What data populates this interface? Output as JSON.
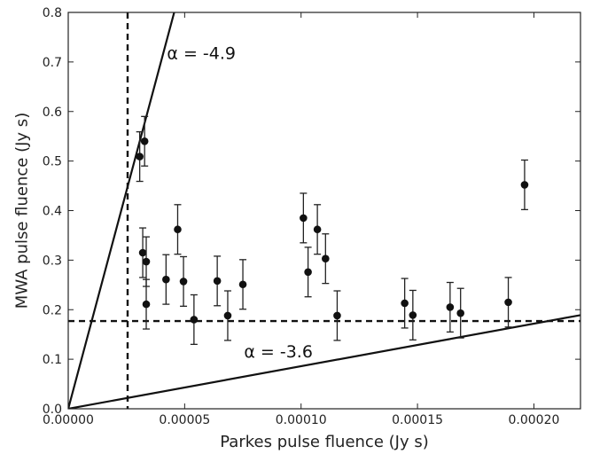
{
  "chart_data": {
    "type": "scatter",
    "xlabel": "Parkes pulse fluence (Jy s)",
    "ylabel": "MWA pulse fluence (Jy s)",
    "xlim": [
      0.0,
      0.00022
    ],
    "ylim": [
      0.0,
      0.8
    ],
    "x_ticks": [
      0.0,
      5e-05,
      0.0001,
      0.00015,
      0.0002
    ],
    "x_tick_labels": [
      "0.00000",
      "0.00005",
      "0.00010",
      "0.00015",
      "0.00020"
    ],
    "y_ticks": [
      0.0,
      0.1,
      0.2,
      0.3,
      0.4,
      0.5,
      0.6,
      0.7,
      0.8
    ],
    "y_tick_labels": [
      "0.0",
      "0.1",
      "0.2",
      "0.3",
      "0.4",
      "0.5",
      "0.6",
      "0.7",
      "0.8"
    ],
    "grid": false,
    "points": [
      {
        "x": 3.07e-05,
        "y": 0.509,
        "err": 0.05
      },
      {
        "x": 3.28e-05,
        "y": 0.54,
        "err": 0.05
      },
      {
        "x": 3.2e-05,
        "y": 0.315,
        "err": 0.05
      },
      {
        "x": 3.35e-05,
        "y": 0.297,
        "err": 0.05
      },
      {
        "x": 3.35e-05,
        "y": 0.211,
        "err": 0.05
      },
      {
        "x": 4.2e-05,
        "y": 0.261,
        "err": 0.05
      },
      {
        "x": 4.7e-05,
        "y": 0.362,
        "err": 0.05
      },
      {
        "x": 4.95e-05,
        "y": 0.257,
        "err": 0.05
      },
      {
        "x": 5.4e-05,
        "y": 0.18,
        "err": 0.05
      },
      {
        "x": 6.4e-05,
        "y": 0.258,
        "err": 0.05
      },
      {
        "x": 6.85e-05,
        "y": 0.188,
        "err": 0.05
      },
      {
        "x": 7.5e-05,
        "y": 0.251,
        "err": 0.05
      },
      {
        "x": 0.000101,
        "y": 0.385,
        "err": 0.05
      },
      {
        "x": 0.000103,
        "y": 0.276,
        "err": 0.05
      },
      {
        "x": 0.000107,
        "y": 0.362,
        "err": 0.05
      },
      {
        "x": 0.0001105,
        "y": 0.303,
        "err": 0.05
      },
      {
        "x": 0.0001155,
        "y": 0.188,
        "err": 0.05
      },
      {
        "x": 0.0001445,
        "y": 0.213,
        "err": 0.05
      },
      {
        "x": 0.000148,
        "y": 0.189,
        "err": 0.05
      },
      {
        "x": 0.000164,
        "y": 0.205,
        "err": 0.05
      },
      {
        "x": 0.0001685,
        "y": 0.193,
        "err": 0.05
      },
      {
        "x": 0.000189,
        "y": 0.215,
        "err": 0.05
      },
      {
        "x": 0.000196,
        "y": 0.452,
        "err": 0.05
      }
    ],
    "reference_lines": [
      {
        "style": "dashed",
        "orientation": "vertical",
        "x": 2.55e-05
      },
      {
        "style": "dashed",
        "orientation": "horizontal",
        "y": 0.177
      },
      {
        "style": "solid",
        "from": [
          0.0,
          0.0
        ],
        "to": [
          4.55e-05,
          0.8
        ],
        "label": "α = -4.9",
        "label_at": [
          4.24e-05,
          0.706
        ]
      },
      {
        "style": "solid",
        "from": [
          0.0,
          0.0
        ],
        "to": [
          0.00022,
          0.189
        ],
        "label": "α = -3.6",
        "label_at": [
          7.55e-05,
          0.104
        ]
      }
    ]
  }
}
